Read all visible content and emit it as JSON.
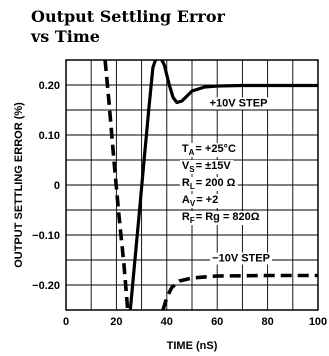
{
  "chart_data": {
    "type": "line",
    "title": [
      "Output Settling Error",
      "vs Time"
    ],
    "xlabel": "TIME (nS)",
    "ylabel": "OUTPUT SETTLING ERROR (%)",
    "xlim": [
      0,
      100
    ],
    "ylim": [
      -0.25,
      0.25
    ],
    "x_ticks": [
      "0",
      "20",
      "40",
      "60",
      "80",
      "100"
    ],
    "y_ticks": [
      "0.20",
      "0.10",
      "0",
      "-0.10",
      "-0.20"
    ],
    "grid": true,
    "series": [
      {
        "name": "+10V STEP",
        "style": "solid",
        "points": [
          [
            25.5,
            -0.25
          ],
          [
            27,
            -0.17
          ],
          [
            29,
            -0.06
          ],
          [
            31,
            0.05
          ],
          [
            33,
            0.16
          ],
          [
            34.5,
            0.235
          ],
          [
            35.5,
            0.25
          ],
          [
            37.5,
            0.255
          ],
          [
            39,
            0.24
          ],
          [
            41,
            0.2
          ],
          [
            42.5,
            0.175
          ],
          [
            44,
            0.165
          ],
          [
            46,
            0.168
          ],
          [
            50,
            0.188
          ],
          [
            55,
            0.196
          ],
          [
            60,
            0.198
          ],
          [
            70,
            0.199
          ],
          [
            100,
            0.199
          ]
        ]
      },
      {
        "name": "-10V STEP",
        "style": "dashed",
        "points": [
          [
            15.5,
            0.25
          ],
          [
            17,
            0.17
          ],
          [
            19,
            0.05
          ],
          [
            21,
            -0.06
          ],
          [
            23,
            -0.16
          ],
          [
            24.5,
            -0.25
          ]
        ]
      },
      {
        "name": "-10V STEP",
        "style": "dashed",
        "points": [
          [
            38.5,
            -0.25
          ],
          [
            40,
            -0.225
          ],
          [
            42,
            -0.205
          ],
          [
            45,
            -0.192
          ],
          [
            50,
            -0.186
          ],
          [
            60,
            -0.182
          ],
          [
            80,
            -0.181
          ],
          [
            100,
            -0.181
          ]
        ]
      }
    ],
    "annotations": {
      "plus_step": "+10V STEP",
      "minus_step": "−10V STEP",
      "conditions": [
        {
          "main": "T",
          "sub": "A",
          "rest": "= +25°C"
        },
        {
          "main": "V",
          "sub": "S",
          "rest": "= ±15V"
        },
        {
          "main": "R",
          "sub": "L",
          "rest": "= 200 Ω"
        },
        {
          "main": "A",
          "sub": "V",
          "rest": "= +2"
        },
        {
          "main": "R",
          "sub": "F",
          "rest": "= Rg = 820Ω"
        }
      ]
    }
  }
}
